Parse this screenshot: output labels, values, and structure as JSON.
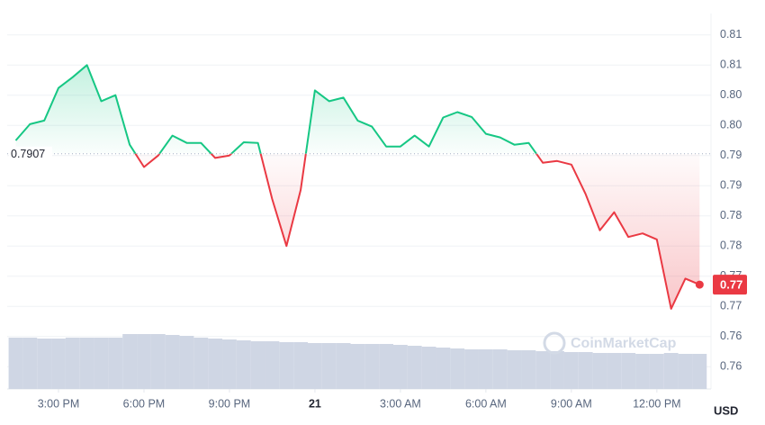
{
  "chart_data": {
    "type": "line",
    "x": [
      13.5,
      14,
      14.5,
      15,
      15.5,
      16,
      16.5,
      17,
      17.5,
      18,
      18.5,
      19,
      19.5,
      20,
      20.5,
      21,
      21.5,
      22,
      22.5,
      23,
      23.5,
      24,
      24.5,
      25,
      25.5,
      26,
      26.5,
      27,
      27.5,
      28,
      28.5,
      29,
      29.5,
      30,
      30.5,
      31,
      31.5,
      32,
      32.5,
      33,
      33.5,
      34,
      34.5,
      35,
      35.5,
      36,
      36.5,
      37,
      37.5
    ],
    "series": [
      {
        "name": "Price",
        "color_up": "#16c784",
        "color_down": "#ea3943",
        "values": [
          0.7929,
          0.7956,
          0.7962,
          0.8016,
          0.8034,
          0.8054,
          0.7994,
          0.8004,
          0.7922,
          0.7885,
          0.7904,
          0.7937,
          0.7925,
          0.7925,
          0.79,
          0.7904,
          0.7926,
          0.7925,
          0.7832,
          0.7754,
          0.7847,
          0.8012,
          0.7994,
          0.8,
          0.7962,
          0.7952,
          0.7919,
          0.7919,
          0.7937,
          0.7919,
          0.7967,
          0.7976,
          0.7968,
          0.794,
          0.7934,
          0.7922,
          0.7925,
          0.7892,
          0.7895,
          0.7889,
          0.784,
          0.778,
          0.781,
          0.7769,
          0.7775,
          0.7765,
          0.765,
          0.77,
          0.769
        ]
      },
      {
        "name": "Volume",
        "color": "#cfd6e4",
        "axis": "volume",
        "values": [
          57,
          57,
          56,
          56,
          57,
          57,
          57,
          57,
          61,
          61,
          61,
          60,
          59,
          57,
          56,
          55,
          54,
          53,
          53,
          52,
          52,
          51,
          51,
          51,
          50,
          50,
          50,
          49,
          48,
          47,
          46,
          45,
          44,
          44,
          44,
          43,
          43,
          42,
          42,
          41,
          41,
          40,
          40,
          40,
          39,
          39,
          40,
          39,
          39
        ]
      }
    ],
    "baseline": 0.7907,
    "current_label": "0.77",
    "xlim": [
      13.2,
      37.9
    ],
    "xticks": [
      {
        "value": 15,
        "label": "3:00 PM"
      },
      {
        "value": 18,
        "label": "6:00 PM"
      },
      {
        "value": 21,
        "label": "9:00 PM"
      },
      {
        "value": 24,
        "label": "21"
      },
      {
        "value": 27,
        "label": "3:00 AM"
      },
      {
        "value": 30,
        "label": "6:00 AM"
      },
      {
        "value": 33,
        "label": "9:00 AM"
      },
      {
        "value": 36,
        "label": "12:00 PM"
      }
    ],
    "ylim": [
      0.7517,
      0.8132
    ],
    "yticks": [
      {
        "value": 0.8104,
        "label": "0.81"
      },
      {
        "value": 0.8054,
        "label": "0.81"
      },
      {
        "value": 0.8004,
        "label": "0.80"
      },
      {
        "value": 0.7954,
        "label": "0.80"
      },
      {
        "value": 0.7904,
        "label": "0.79"
      },
      {
        "value": 0.7854,
        "label": "0.79"
      },
      {
        "value": 0.7804,
        "label": "0.78"
      },
      {
        "value": 0.7754,
        "label": "0.78"
      },
      {
        "value": 0.7704,
        "label": "0.77"
      },
      {
        "value": 0.7654,
        "label": "0.77"
      },
      {
        "value": 0.7604,
        "label": "0.76"
      },
      {
        "value": 0.7554,
        "label": "0.76"
      }
    ],
    "volume_lim": [
      0,
      60
    ],
    "grid": true,
    "unit": "USD",
    "watermark": "CoinMarketCap"
  }
}
